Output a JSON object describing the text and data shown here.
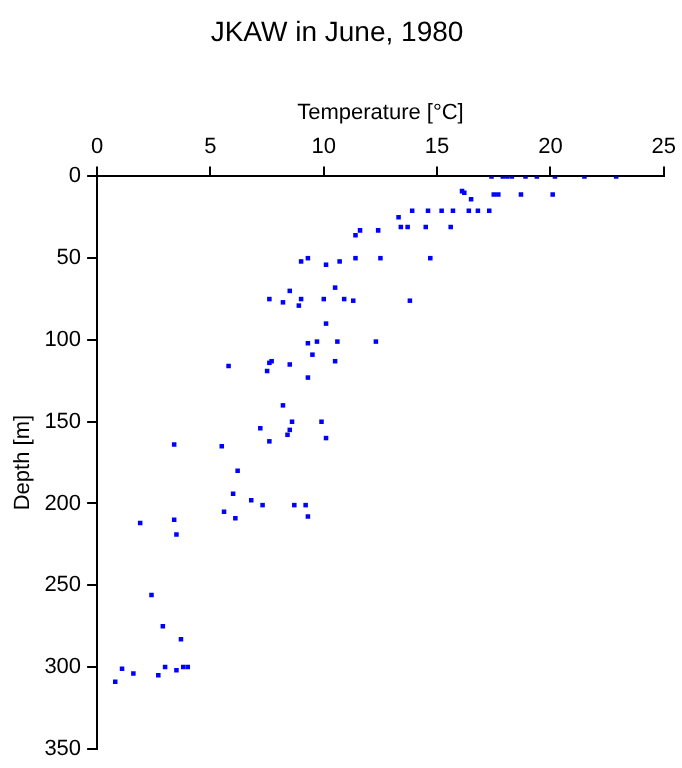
{
  "chart_data": {
    "type": "scatter",
    "title": "JKAW in June, 1980",
    "xlabel": "Temperature [°C]",
    "ylabel": "Depth [m]",
    "series": [
      {
        "color": "#0000ff",
        "x": [
          17.4,
          17.9,
          18.1,
          18.3,
          18.9,
          19.4,
          20.2,
          21.5,
          22.9,
          17.5,
          17.7,
          18.7,
          20.1,
          16.1,
          16.2,
          16.5,
          13.9,
          14.6,
          15.2,
          15.7,
          16.4,
          16.8,
          17.3,
          13.3,
          13.4,
          13.7,
          14.5,
          15.6,
          11.6,
          12.4,
          11.4,
          9.0,
          9.3,
          10.1,
          10.7,
          11.4,
          12.5,
          14.7,
          8.5,
          10.5,
          7.6,
          8.2,
          9.0,
          8.9,
          10.0,
          10.9,
          11.3,
          13.8,
          10.1,
          9.3,
          9.7,
          10.6,
          12.3,
          5.8,
          7.7,
          7.6,
          8.5,
          9.5,
          10.5,
          7.5,
          9.3,
          8.2,
          8.6,
          9.9,
          7.2,
          8.5,
          8.4,
          10.1,
          7.6,
          3.4,
          5.5,
          6.2,
          6.0,
          1.9,
          3.4,
          3.5,
          5.6,
          6.1,
          6.8,
          7.3,
          8.7,
          9.2,
          9.3,
          2.4,
          2.9,
          3.7,
          0.8,
          1.1,
          1.6,
          2.7,
          3.0,
          3.5,
          3.8,
          4.0
        ],
        "values": [
          0,
          0,
          0,
          0,
          0,
          0,
          0,
          0,
          0,
          11,
          11,
          11,
          11,
          9,
          10,
          14,
          21,
          21,
          21,
          21,
          21,
          21,
          21,
          25,
          31,
          31,
          31,
          31,
          33,
          33,
          36,
          52,
          50,
          54,
          52,
          50,
          50,
          50,
          70,
          68,
          75,
          77,
          75,
          79,
          75,
          75,
          76,
          76,
          90,
          102,
          101,
          101,
          101,
          116,
          113,
          114,
          115,
          109,
          113,
          119,
          123,
          140,
          150,
          150,
          154,
          155,
          158,
          160,
          162,
          164,
          165,
          180,
          194,
          212,
          210,
          219,
          205,
          209,
          198,
          201,
          201,
          201,
          208,
          256,
          275,
          283,
          309,
          301,
          304,
          305,
          300,
          302,
          300,
          300
        ]
      }
    ],
    "xlim": [
      0,
      25
    ],
    "xticks": [
      0,
      5,
      10,
      15,
      20,
      25
    ],
    "ylim": [
      350,
      0
    ],
    "yticks": [
      0,
      50,
      100,
      150,
      200,
      250,
      300,
      350
    ],
    "grid": false,
    "legend": false,
    "marker": "square"
  }
}
